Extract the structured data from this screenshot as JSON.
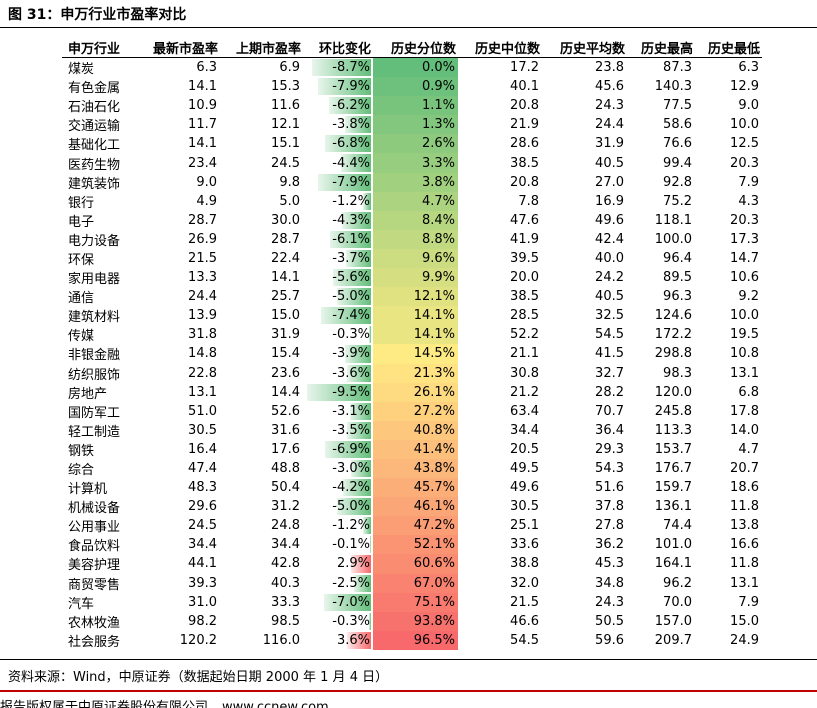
{
  "title": "图 31：申万行业市盈率对比",
  "table": {
    "header": [
      "申万行业",
      "最新市盈率",
      "上期市盈率",
      "环比变化",
      "历史分位数",
      "历史中位数",
      "历史平均数",
      "历史最高",
      "历史最低"
    ],
    "rows": [
      [
        "煤炭",
        "6.3",
        "6.9",
        "-8.7%",
        "0.0%",
        "17.2",
        "23.8",
        "87.3",
        "6.3"
      ],
      [
        "有色金属",
        "14.1",
        "15.3",
        "-7.9%",
        "0.9%",
        "40.1",
        "45.6",
        "140.3",
        "12.9"
      ],
      [
        "石油石化",
        "10.9",
        "11.6",
        "-6.2%",
        "1.1%",
        "20.8",
        "24.3",
        "77.5",
        "9.0"
      ],
      [
        "交通运输",
        "11.7",
        "12.1",
        "-3.8%",
        "1.3%",
        "21.9",
        "24.4",
        "58.6",
        "10.0"
      ],
      [
        "基础化工",
        "14.1",
        "15.1",
        "-6.8%",
        "2.6%",
        "28.6",
        "31.9",
        "76.6",
        "12.5"
      ],
      [
        "医药生物",
        "23.4",
        "24.5",
        "-4.4%",
        "3.3%",
        "38.5",
        "40.5",
        "99.4",
        "20.3"
      ],
      [
        "建筑装饰",
        "9.0",
        "9.8",
        "-7.9%",
        "3.8%",
        "20.8",
        "27.0",
        "92.8",
        "7.9"
      ],
      [
        "银行",
        "4.9",
        "5.0",
        "-1.2%",
        "4.7%",
        "7.8",
        "16.9",
        "75.2",
        "4.3"
      ],
      [
        "电子",
        "28.7",
        "30.0",
        "-4.3%",
        "8.4%",
        "47.6",
        "49.6",
        "118.1",
        "20.3"
      ],
      [
        "电力设备",
        "26.9",
        "28.7",
        "-6.1%",
        "8.8%",
        "41.9",
        "42.4",
        "100.0",
        "17.3"
      ],
      [
        "环保",
        "21.5",
        "22.4",
        "-3.7%",
        "9.6%",
        "39.5",
        "40.0",
        "96.4",
        "14.7"
      ],
      [
        "家用电器",
        "13.3",
        "14.1",
        "-5.6%",
        "9.9%",
        "20.0",
        "24.2",
        "89.5",
        "10.6"
      ],
      [
        "通信",
        "24.4",
        "25.7",
        "-5.0%",
        "12.1%",
        "38.5",
        "40.5",
        "96.3",
        "9.2"
      ],
      [
        "建筑材料",
        "13.9",
        "15.0",
        "-7.4%",
        "14.1%",
        "28.5",
        "32.5",
        "124.6",
        "10.0"
      ],
      [
        "传媒",
        "31.8",
        "31.9",
        "-0.3%",
        "14.1%",
        "52.2",
        "54.5",
        "172.2",
        "19.5"
      ],
      [
        "非银金融",
        "14.8",
        "15.4",
        "-3.9%",
        "14.5%",
        "21.1",
        "41.5",
        "298.8",
        "10.8"
      ],
      [
        "纺织服饰",
        "22.8",
        "23.6",
        "-3.6%",
        "21.3%",
        "30.8",
        "32.7",
        "98.3",
        "13.1"
      ],
      [
        "房地产",
        "13.1",
        "14.4",
        "-9.5%",
        "26.1%",
        "21.2",
        "28.2",
        "120.0",
        "6.8"
      ],
      [
        "国防军工",
        "51.0",
        "52.6",
        "-3.1%",
        "27.2%",
        "63.4",
        "70.7",
        "245.8",
        "17.8"
      ],
      [
        "轻工制造",
        "30.5",
        "31.6",
        "-3.5%",
        "40.8%",
        "34.4",
        "36.4",
        "113.3",
        "14.0"
      ],
      [
        "钢铁",
        "16.4",
        "17.6",
        "-6.9%",
        "41.4%",
        "20.5",
        "29.3",
        "153.7",
        "4.7"
      ],
      [
        "综合",
        "47.4",
        "48.8",
        "-3.0%",
        "43.8%",
        "49.5",
        "54.3",
        "176.7",
        "20.7"
      ],
      [
        "计算机",
        "48.3",
        "50.4",
        "-4.2%",
        "45.7%",
        "49.6",
        "51.6",
        "159.7",
        "18.6"
      ],
      [
        "机械设备",
        "29.6",
        "31.2",
        "-5.0%",
        "46.1%",
        "30.5",
        "37.8",
        "136.1",
        "11.8"
      ],
      [
        "公用事业",
        "24.5",
        "24.8",
        "-1.2%",
        "47.2%",
        "25.1",
        "27.8",
        "74.4",
        "13.8"
      ],
      [
        "食品饮料",
        "34.4",
        "34.4",
        "-0.1%",
        "52.1%",
        "33.6",
        "36.2",
        "101.0",
        "16.6"
      ],
      [
        "美容护理",
        "44.1",
        "42.8",
        "2.9%",
        "60.6%",
        "38.8",
        "45.3",
        "164.1",
        "11.8"
      ],
      [
        "商贸零售",
        "39.3",
        "40.3",
        "-2.5%",
        "67.0%",
        "32.0",
        "34.8",
        "96.2",
        "13.1"
      ],
      [
        "汽车",
        "31.0",
        "33.3",
        "-7.0%",
        "75.1%",
        "21.5",
        "24.3",
        "70.0",
        "7.9"
      ],
      [
        "农林牧渔",
        "98.2",
        "98.5",
        "-0.3%",
        "93.8%",
        "46.6",
        "50.5",
        "157.0",
        "15.0"
      ],
      [
        "社会服务",
        "120.2",
        "116.0",
        "3.6%",
        "96.5%",
        "54.5",
        "59.6",
        "209.7",
        "24.9"
      ]
    ]
  },
  "source": "资料来源：Wind，中原证券（数据起始日期 2000 年 1 月 4 日）",
  "footer": {
    "copyright": "报告版权属于中原证券股份有限公司",
    "website": "www.ccnew.com"
  }
}
